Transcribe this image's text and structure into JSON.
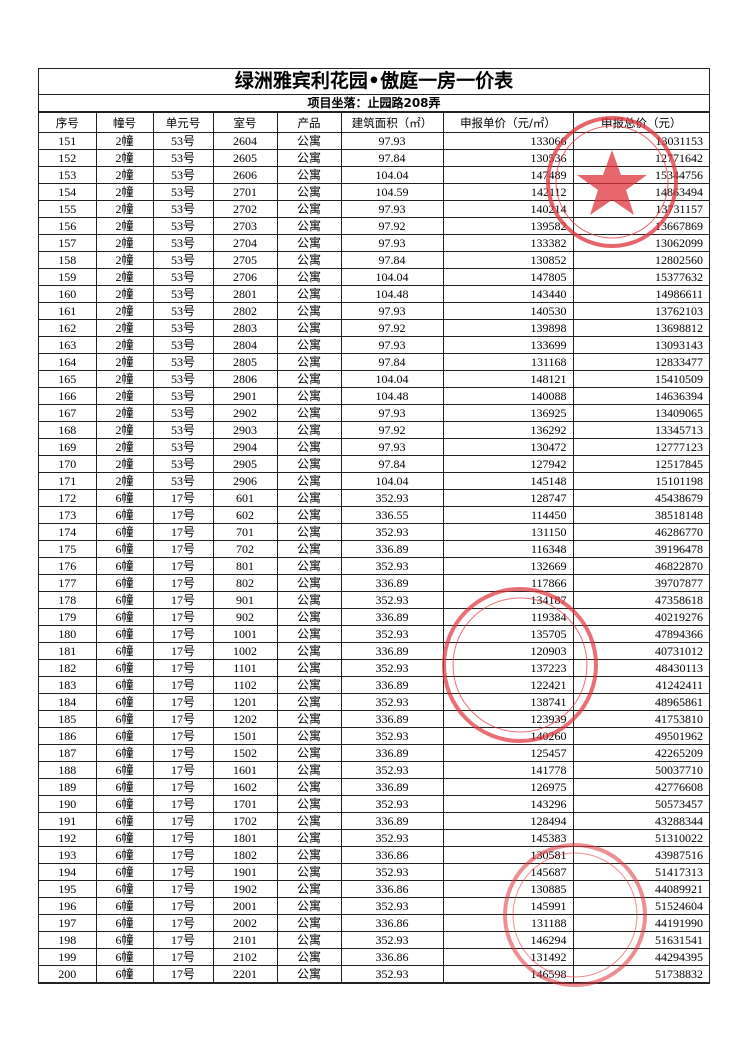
{
  "header": {
    "title": "绿洲雅宾利花园•傲庭一房一价表",
    "subtitle": "项目坐落：止园路208弄"
  },
  "table": {
    "columns": [
      "序号",
      "幢号",
      "单元号",
      "室号",
      "产品",
      "建筑面积（㎡）",
      "申报单价（元/㎡）",
      "申报总价（元）"
    ],
    "rows": [
      [
        "151",
        "2幢",
        "53号",
        "2604",
        "公寓",
        "97.93",
        "133066",
        "13031153"
      ],
      [
        "152",
        "2幢",
        "53号",
        "2605",
        "公寓",
        "97.84",
        "130536",
        "12771642"
      ],
      [
        "153",
        "2幢",
        "53号",
        "2606",
        "公寓",
        "104.04",
        "147489",
        "15344756"
      ],
      [
        "154",
        "2幢",
        "53号",
        "2701",
        "公寓",
        "104.59",
        "142112",
        "14863494"
      ],
      [
        "155",
        "2幢",
        "53号",
        "2702",
        "公寓",
        "97.93",
        "140214",
        "13731157"
      ],
      [
        "156",
        "2幢",
        "53号",
        "2703",
        "公寓",
        "97.92",
        "139582",
        "13667869"
      ],
      [
        "157",
        "2幢",
        "53号",
        "2704",
        "公寓",
        "97.93",
        "133382",
        "13062099"
      ],
      [
        "158",
        "2幢",
        "53号",
        "2705",
        "公寓",
        "97.84",
        "130852",
        "12802560"
      ],
      [
        "159",
        "2幢",
        "53号",
        "2706",
        "公寓",
        "104.04",
        "147805",
        "15377632"
      ],
      [
        "160",
        "2幢",
        "53号",
        "2801",
        "公寓",
        "104.48",
        "143440",
        "14986611"
      ],
      [
        "161",
        "2幢",
        "53号",
        "2802",
        "公寓",
        "97.93",
        "140530",
        "13762103"
      ],
      [
        "162",
        "2幢",
        "53号",
        "2803",
        "公寓",
        "97.92",
        "139898",
        "13698812"
      ],
      [
        "163",
        "2幢",
        "53号",
        "2804",
        "公寓",
        "97.93",
        "133699",
        "13093143"
      ],
      [
        "164",
        "2幢",
        "53号",
        "2805",
        "公寓",
        "97.84",
        "131168",
        "12833477"
      ],
      [
        "165",
        "2幢",
        "53号",
        "2806",
        "公寓",
        "104.04",
        "148121",
        "15410509"
      ],
      [
        "166",
        "2幢",
        "53号",
        "2901",
        "公寓",
        "104.48",
        "140088",
        "14636394"
      ],
      [
        "167",
        "2幢",
        "53号",
        "2902",
        "公寓",
        "97.93",
        "136925",
        "13409065"
      ],
      [
        "168",
        "2幢",
        "53号",
        "2903",
        "公寓",
        "97.92",
        "136292",
        "13345713"
      ],
      [
        "169",
        "2幢",
        "53号",
        "2904",
        "公寓",
        "97.93",
        "130472",
        "12777123"
      ],
      [
        "170",
        "2幢",
        "53号",
        "2905",
        "公寓",
        "97.84",
        "127942",
        "12517845"
      ],
      [
        "171",
        "2幢",
        "53号",
        "2906",
        "公寓",
        "104.04",
        "145148",
        "15101198"
      ],
      [
        "172",
        "6幢",
        "17号",
        "601",
        "公寓",
        "352.93",
        "128747",
        "45438679"
      ],
      [
        "173",
        "6幢",
        "17号",
        "602",
        "公寓",
        "336.55",
        "114450",
        "38518148"
      ],
      [
        "174",
        "6幢",
        "17号",
        "701",
        "公寓",
        "352.93",
        "131150",
        "46286770"
      ],
      [
        "175",
        "6幢",
        "17号",
        "702",
        "公寓",
        "336.89",
        "116348",
        "39196478"
      ],
      [
        "176",
        "6幢",
        "17号",
        "801",
        "公寓",
        "352.93",
        "132669",
        "46822870"
      ],
      [
        "177",
        "6幢",
        "17号",
        "802",
        "公寓",
        "336.89",
        "117866",
        "39707877"
      ],
      [
        "178",
        "6幢",
        "17号",
        "901",
        "公寓",
        "352.93",
        "134187",
        "47358618"
      ],
      [
        "179",
        "6幢",
        "17号",
        "902",
        "公寓",
        "336.89",
        "119384",
        "40219276"
      ],
      [
        "180",
        "6幢",
        "17号",
        "1001",
        "公寓",
        "352.93",
        "135705",
        "47894366"
      ],
      [
        "181",
        "6幢",
        "17号",
        "1002",
        "公寓",
        "336.89",
        "120903",
        "40731012"
      ],
      [
        "182",
        "6幢",
        "17号",
        "1101",
        "公寓",
        "352.93",
        "137223",
        "48430113"
      ],
      [
        "183",
        "6幢",
        "17号",
        "1102",
        "公寓",
        "336.89",
        "122421",
        "41242411"
      ],
      [
        "184",
        "6幢",
        "17号",
        "1201",
        "公寓",
        "352.93",
        "138741",
        "48965861"
      ],
      [
        "185",
        "6幢",
        "17号",
        "1202",
        "公寓",
        "336.89",
        "123939",
        "41753810"
      ],
      [
        "186",
        "6幢",
        "17号",
        "1501",
        "公寓",
        "352.93",
        "140260",
        "49501962"
      ],
      [
        "187",
        "6幢",
        "17号",
        "1502",
        "公寓",
        "336.89",
        "125457",
        "42265209"
      ],
      [
        "188",
        "6幢",
        "17号",
        "1601",
        "公寓",
        "352.93",
        "141778",
        "50037710"
      ],
      [
        "189",
        "6幢",
        "17号",
        "1602",
        "公寓",
        "336.89",
        "126975",
        "42776608"
      ],
      [
        "190",
        "6幢",
        "17号",
        "1701",
        "公寓",
        "352.93",
        "143296",
        "50573457"
      ],
      [
        "191",
        "6幢",
        "17号",
        "1702",
        "公寓",
        "336.89",
        "128494",
        "43288344"
      ],
      [
        "192",
        "6幢",
        "17号",
        "1801",
        "公寓",
        "352.93",
        "145383",
        "51310022"
      ],
      [
        "193",
        "6幢",
        "17号",
        "1802",
        "公寓",
        "336.86",
        "130581",
        "43987516"
      ],
      [
        "194",
        "6幢",
        "17号",
        "1901",
        "公寓",
        "352.93",
        "145687",
        "51417313"
      ],
      [
        "195",
        "6幢",
        "17号",
        "1902",
        "公寓",
        "336.86",
        "130885",
        "44089921"
      ],
      [
        "196",
        "6幢",
        "17号",
        "2001",
        "公寓",
        "352.93",
        "145991",
        "51524604"
      ],
      [
        "197",
        "6幢",
        "17号",
        "2002",
        "公寓",
        "336.86",
        "131188",
        "44191990"
      ],
      [
        "198",
        "6幢",
        "17号",
        "2101",
        "公寓",
        "352.93",
        "146294",
        "51631541"
      ],
      [
        "199",
        "6幢",
        "17号",
        "2102",
        "公寓",
        "336.86",
        "131492",
        "44294395"
      ],
      [
        "200",
        "6幢",
        "17号",
        "2201",
        "公寓",
        "352.93",
        "146598",
        "51738832"
      ]
    ]
  }
}
